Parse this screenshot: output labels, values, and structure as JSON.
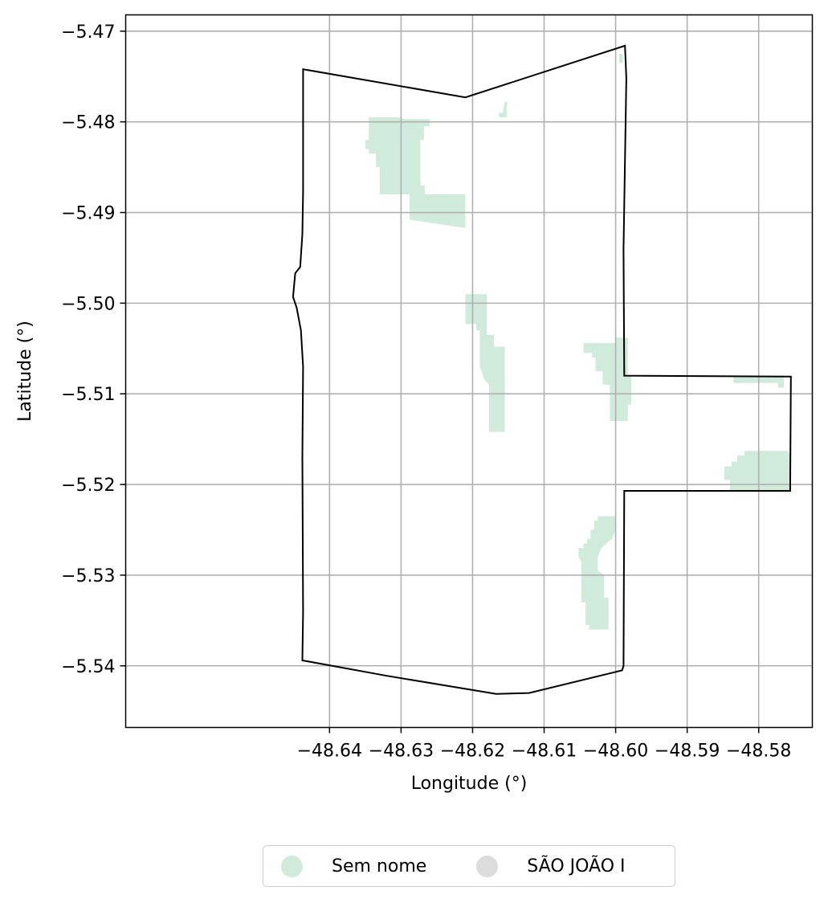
{
  "chart_data": {
    "type": "map",
    "xlabel": "Longitude (°)",
    "ylabel": "Latitude (°)",
    "xlim": [
      -48.6685,
      -48.5725
    ],
    "ylim": [
      -5.5468,
      -5.4682
    ],
    "xticks": [
      -48.64,
      -48.63,
      -48.62,
      -48.61,
      -48.6,
      -48.59,
      -48.58
    ],
    "xtick_labels": [
      "−48.64",
      "−48.63",
      "−48.62",
      "−48.61",
      "−48.60",
      "−48.59",
      "−48.58"
    ],
    "yticks": [
      -5.47,
      -5.48,
      -5.49,
      -5.5,
      -5.51,
      -5.52,
      -5.53,
      -5.54
    ],
    "ytick_labels": [
      "−5.47",
      "−5.48",
      "−5.49",
      "−5.50",
      "−5.51",
      "−5.52",
      "−5.53",
      "−5.54"
    ],
    "grid": true,
    "boundary": [
      [
        -48.6437,
        -5.4742
      ],
      [
        -48.621,
        -5.4773
      ],
      [
        -48.5987,
        -5.4716
      ],
      [
        -48.5985,
        -5.4752
      ],
      [
        -48.5989,
        -5.494
      ],
      [
        -48.5988,
        -5.508
      ],
      [
        -48.5755,
        -5.5081
      ],
      [
        -48.5756,
        -5.5207
      ],
      [
        -48.5988,
        -5.5207
      ],
      [
        -48.5989,
        -5.54
      ],
      [
        -48.5991,
        -5.5405
      ],
      [
        -48.6121,
        -5.543
      ],
      [
        -48.6167,
        -5.5431
      ],
      [
        -48.632,
        -5.5411
      ],
      [
        -48.6438,
        -5.5394
      ],
      [
        -48.6437,
        -5.534
      ],
      [
        -48.6438,
        -5.517
      ],
      [
        -48.6437,
        -5.507
      ],
      [
        -48.644,
        -5.503
      ],
      [
        -48.6446,
        -5.5005
      ],
      [
        -48.6451,
        -5.4993
      ],
      [
        -48.6448,
        -5.4967
      ],
      [
        -48.6441,
        -5.496
      ],
      [
        -48.6438,
        -5.4924
      ],
      [
        -48.6437,
        -5.4877
      ],
      [
        -48.6437,
        -5.4742
      ]
    ],
    "regions": [
      {
        "name": "Sem nome",
        "polygon": [
          [
            -48.6345,
            -5.4795
          ],
          [
            -48.6305,
            -5.4795
          ],
          [
            -48.6295,
            -5.4797
          ],
          [
            -48.626,
            -5.4797
          ],
          [
            -48.626,
            -5.4805
          ],
          [
            -48.6268,
            -5.4805
          ],
          [
            -48.6268,
            -5.482
          ],
          [
            -48.6273,
            -5.482
          ],
          [
            -48.6273,
            -5.487
          ],
          [
            -48.6267,
            -5.487
          ],
          [
            -48.6267,
            -5.488
          ],
          [
            -48.621,
            -5.488
          ],
          [
            -48.621,
            -5.4917
          ],
          [
            -48.6288,
            -5.4908
          ],
          [
            -48.6288,
            -5.488
          ],
          [
            -48.633,
            -5.488
          ],
          [
            -48.633,
            -5.485
          ],
          [
            -48.6335,
            -5.485
          ],
          [
            -48.6335,
            -5.4835
          ],
          [
            -48.6345,
            -5.4835
          ],
          [
            -48.6345,
            -5.483
          ],
          [
            -48.635,
            -5.483
          ],
          [
            -48.635,
            -5.482
          ],
          [
            -48.6345,
            -5.482
          ]
        ]
      },
      {
        "name": "Sem nome",
        "polygon": [
          [
            -48.6155,
            -5.4778
          ],
          [
            -48.6152,
            -5.4778
          ],
          [
            -48.6152,
            -5.4795
          ],
          [
            -48.6163,
            -5.4795
          ],
          [
            -48.6163,
            -5.479
          ],
          [
            -48.6158,
            -5.479
          ]
        ]
      },
      {
        "name": "Sem nome",
        "polygon": [
          [
            -48.621,
            -5.499
          ],
          [
            -48.618,
            -5.499
          ],
          [
            -48.618,
            -5.5035
          ],
          [
            -48.617,
            -5.5035
          ],
          [
            -48.617,
            -5.5048
          ],
          [
            -48.6155,
            -5.5048
          ],
          [
            -48.6155,
            -5.51
          ],
          [
            -48.6155,
            -5.5142
          ],
          [
            -48.6177,
            -5.5142
          ],
          [
            -48.6177,
            -5.509
          ],
          [
            -48.6183,
            -5.5085
          ],
          [
            -48.619,
            -5.507
          ],
          [
            -48.619,
            -5.503
          ],
          [
            -48.6195,
            -5.503
          ],
          [
            -48.6195,
            -5.5023
          ],
          [
            -48.621,
            -5.5023
          ]
        ]
      },
      {
        "name": "Sem nome",
        "polygon": [
          [
            -48.6045,
            -5.5044
          ],
          [
            -48.6,
            -5.5044
          ],
          [
            -48.6,
            -5.5038
          ],
          [
            -48.5983,
            -5.5038
          ],
          [
            -48.5983,
            -5.508
          ],
          [
            -48.5978,
            -5.508
          ],
          [
            -48.5978,
            -5.5112
          ],
          [
            -48.5983,
            -5.5112
          ],
          [
            -48.5983,
            -5.513
          ],
          [
            -48.6008,
            -5.513
          ],
          [
            -48.6008,
            -5.509
          ],
          [
            -48.6018,
            -5.509
          ],
          [
            -48.6018,
            -5.5075
          ],
          [
            -48.6028,
            -5.5075
          ],
          [
            -48.6028,
            -5.506
          ],
          [
            -48.6033,
            -5.506
          ],
          [
            -48.6033,
            -5.5055
          ],
          [
            -48.6045,
            -5.5055
          ]
        ]
      },
      {
        "name": "Sem nome",
        "polygon": [
          [
            -48.5835,
            -5.5088
          ],
          [
            -48.5773,
            -5.5088
          ],
          [
            -48.5773,
            -5.5093
          ],
          [
            -48.5765,
            -5.5093
          ],
          [
            -48.5765,
            -5.5081
          ],
          [
            -48.5835,
            -5.5081
          ]
        ]
      },
      {
        "name": "Sem nome",
        "polygon": [
          [
            -48.5805,
            -5.5163
          ],
          [
            -48.576,
            -5.5163
          ],
          [
            -48.5755,
            -5.5168
          ],
          [
            -48.5755,
            -5.5207
          ],
          [
            -48.584,
            -5.5207
          ],
          [
            -48.584,
            -5.5195
          ],
          [
            -48.5848,
            -5.5195
          ],
          [
            -48.5848,
            -5.518
          ],
          [
            -48.5838,
            -5.518
          ],
          [
            -48.5838,
            -5.5175
          ],
          [
            -48.583,
            -5.5175
          ],
          [
            -48.583,
            -5.5168
          ],
          [
            -48.582,
            -5.5168
          ],
          [
            -48.582,
            -5.5163
          ]
        ]
      },
      {
        "name": "Sem nome",
        "polygon": [
          [
            -48.6,
            -5.5235
          ],
          [
            -48.6025,
            -5.5235
          ],
          [
            -48.6025,
            -5.524
          ],
          [
            -48.603,
            -5.524
          ],
          [
            -48.603,
            -5.525
          ],
          [
            -48.6035,
            -5.525
          ],
          [
            -48.6035,
            -5.526
          ],
          [
            -48.604,
            -5.526
          ],
          [
            -48.604,
            -5.5265
          ],
          [
            -48.6045,
            -5.5265
          ],
          [
            -48.6045,
            -5.527
          ],
          [
            -48.6052,
            -5.527
          ],
          [
            -48.6052,
            -5.528
          ],
          [
            -48.6048,
            -5.5285
          ],
          [
            -48.6048,
            -5.533
          ],
          [
            -48.6042,
            -5.533
          ],
          [
            -48.6042,
            -5.5355
          ],
          [
            -48.6037,
            -5.5355
          ],
          [
            -48.6037,
            -5.536
          ],
          [
            -48.601,
            -5.536
          ],
          [
            -48.601,
            -5.5325
          ],
          [
            -48.6016,
            -5.5325
          ],
          [
            -48.6016,
            -5.53
          ],
          [
            -48.6025,
            -5.5295
          ],
          [
            -48.6025,
            -5.528
          ],
          [
            -48.602,
            -5.527
          ],
          [
            -48.6013,
            -5.5265
          ],
          [
            -48.6005,
            -5.526
          ],
          [
            -48.6,
            -5.525
          ]
        ]
      },
      {
        "name": "Sem nome",
        "polygon": [
          [
            -48.5995,
            -5.4725
          ],
          [
            -48.599,
            -5.4725
          ],
          [
            -48.599,
            -5.4735
          ],
          [
            -48.5995,
            -5.4735
          ]
        ]
      }
    ],
    "region_color": "#d0ebdc",
    "boundary_color": "#000000",
    "legend_placement": "bottom-center"
  },
  "legend": {
    "items": [
      {
        "label": "Sem nome",
        "color": "#d0ebdc"
      },
      {
        "label": "SÃO JOÃO I",
        "color": "#dcdcdc"
      }
    ]
  }
}
